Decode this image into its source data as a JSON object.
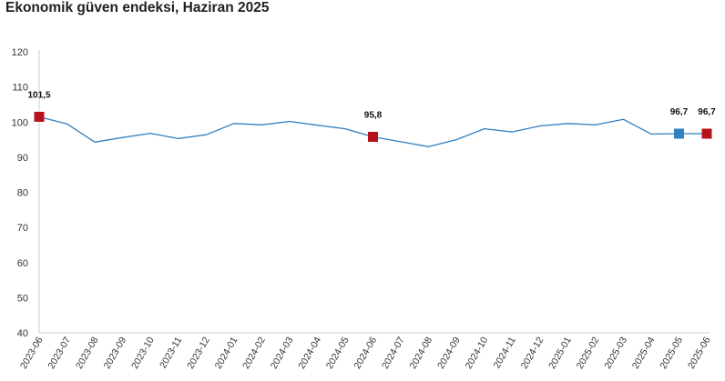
{
  "title": "Ekonomik güven endeksi, Haziran 2025",
  "colors": {
    "line": "#2f7fc1",
    "highlight_red": "#b5121b",
    "highlight_blue": "#2f7fc1",
    "axis": "#cccccc"
  },
  "chart_data": {
    "type": "line",
    "title": "Ekonomik güven endeksi, Haziran 2025",
    "xlabel": "",
    "ylabel": "",
    "ylim": [
      40,
      120
    ],
    "yticks": [
      40,
      50,
      60,
      70,
      80,
      90,
      100,
      110,
      120
    ],
    "grid": false,
    "categories": [
      "2023-06",
      "2023-07",
      "2023-08",
      "2023-09",
      "2023-10",
      "2023-11",
      "2023-12",
      "2024-01",
      "2024-02",
      "2024-03",
      "2024-04",
      "2024-05",
      "2024-06",
      "2024-07",
      "2024-08",
      "2024-09",
      "2024-10",
      "2024-11",
      "2024-12",
      "2025-01",
      "2025-02",
      "2025-03",
      "2025-04",
      "2025-05",
      "2025-06"
    ],
    "series": [
      {
        "values": [
          101.5,
          99.5,
          94.3,
          95.6,
          96.8,
          95.3,
          96.4,
          99.6,
          99.2,
          100.2,
          99.1,
          98.1,
          95.8,
          94.4,
          93.0,
          95.0,
          98.1,
          97.2,
          98.9,
          99.6,
          99.2,
          100.8,
          96.6,
          96.7,
          96.7
        ]
      }
    ],
    "highlights": [
      {
        "category": "2023-06",
        "value": 101.5,
        "label": "101,5",
        "color": "#b5121b"
      },
      {
        "category": "2024-06",
        "value": 95.8,
        "label": "95,8",
        "color": "#b5121b"
      },
      {
        "category": "2025-05",
        "value": 96.7,
        "label": "96,7",
        "color": "#2f7fc1"
      },
      {
        "category": "2025-06",
        "value": 96.7,
        "label": "96,7",
        "color": "#b5121b"
      }
    ]
  }
}
